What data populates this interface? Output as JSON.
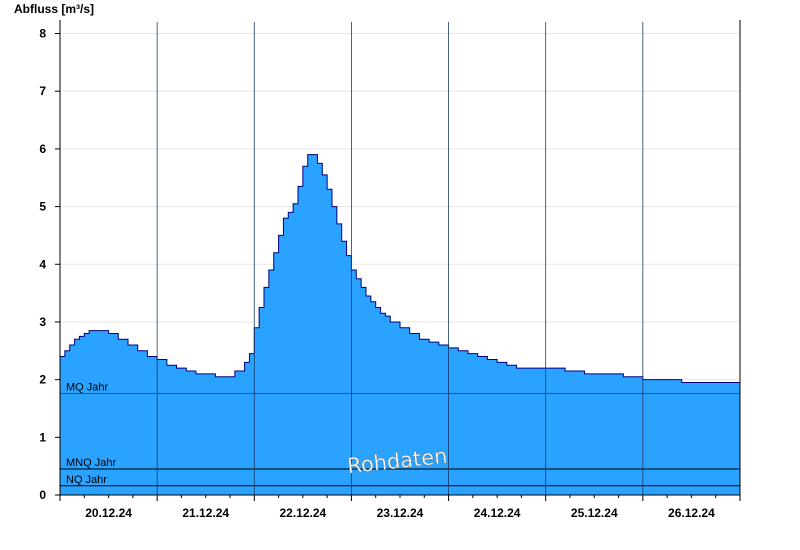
{
  "chart_data": {
    "type": "area",
    "ylabel": "Abfluss [m³/s]",
    "ylim": [
      0,
      8.2
    ],
    "yticks": [
      0,
      1,
      2,
      3,
      4,
      5,
      6,
      7,
      8
    ],
    "xlim": [
      0,
      7
    ],
    "xtick_labels": [
      "20.12.24",
      "21.12.24",
      "22.12.24",
      "23.12.24",
      "24.12.24",
      "25.12.24",
      "26.12.24"
    ],
    "grid": true,
    "fill_color": "#29a3ff",
    "line_color": "#000080",
    "series": [
      {
        "x": [
          0,
          0.05,
          0.1,
          0.15,
          0.2,
          0.25,
          0.3,
          0.4,
          0.5,
          0.6,
          0.7,
          0.8,
          0.9,
          1.0,
          1.1,
          1.2,
          1.3,
          1.4,
          1.5,
          1.6,
          1.7,
          1.8,
          1.9,
          1.95,
          2.0,
          2.05,
          2.1,
          2.15,
          2.2,
          2.25,
          2.3,
          2.35,
          2.4,
          2.45,
          2.5,
          2.55,
          2.6,
          2.65,
          2.7,
          2.75,
          2.8,
          2.85,
          2.9,
          2.95,
          3.0,
          3.05,
          3.1,
          3.15,
          3.2,
          3.25,
          3.3,
          3.35,
          3.4,
          3.5,
          3.6,
          3.7,
          3.8,
          3.9,
          4.0,
          4.1,
          4.2,
          4.3,
          4.4,
          4.5,
          4.6,
          4.7,
          4.8,
          4.9,
          5.0,
          5.2,
          5.4,
          5.6,
          5.8,
          6.0,
          6.2,
          6.4,
          6.6,
          6.8,
          7.0
        ],
        "values": [
          2.4,
          2.5,
          2.6,
          2.7,
          2.75,
          2.8,
          2.85,
          2.85,
          2.8,
          2.7,
          2.6,
          2.5,
          2.4,
          2.35,
          2.25,
          2.2,
          2.15,
          2.1,
          2.1,
          2.05,
          2.05,
          2.15,
          2.3,
          2.45,
          2.9,
          3.25,
          3.6,
          3.9,
          4.2,
          4.5,
          4.8,
          4.9,
          5.05,
          5.35,
          5.7,
          5.9,
          5.9,
          5.75,
          5.55,
          5.3,
          5.0,
          4.7,
          4.4,
          4.15,
          3.9,
          3.75,
          3.6,
          3.45,
          3.35,
          3.25,
          3.15,
          3.1,
          3.0,
          2.9,
          2.8,
          2.7,
          2.65,
          2.6,
          2.55,
          2.5,
          2.45,
          2.4,
          2.35,
          2.3,
          2.25,
          2.2,
          2.2,
          2.2,
          2.2,
          2.15,
          2.1,
          2.1,
          2.05,
          2.0,
          2.0,
          1.95,
          1.95,
          1.95,
          1.95
        ]
      }
    ],
    "reference_lines": [
      {
        "label": "MQ Jahr",
        "value": 1.76,
        "color": "#008000"
      },
      {
        "label": "MNQ Jahr",
        "value": 0.45,
        "color": "#000000"
      },
      {
        "label": "NQ Jahr",
        "value": 0.16,
        "color": "#000000"
      }
    ],
    "annotation": "Rohdaten"
  }
}
